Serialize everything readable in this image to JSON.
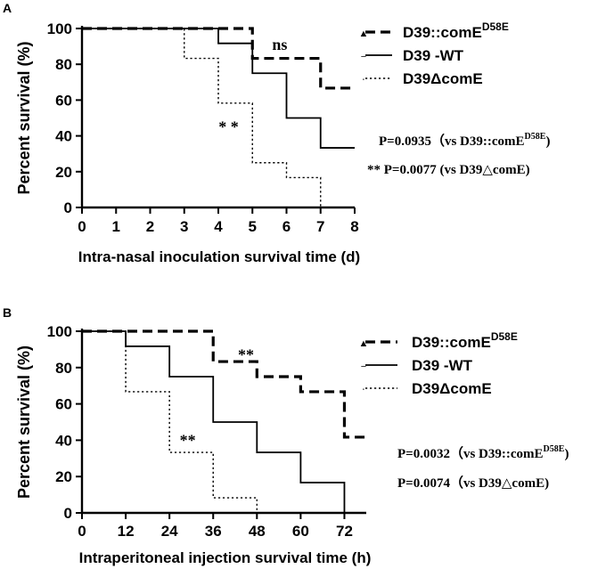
{
  "chart_data": [
    {
      "type": "line",
      "subtype": "kaplan-meier step",
      "panel_label": "A",
      "xlabel": "Intra-nasal inoculation survival time (d)",
      "ylabel": "Percent survival (%)",
      "xlim": [
        0,
        8
      ],
      "ylim": [
        0,
        100
      ],
      "x_ticks": [
        0,
        1,
        2,
        3,
        4,
        5,
        6,
        7,
        8
      ],
      "y_ticks": [
        0,
        20,
        40,
        60,
        80,
        100
      ],
      "grid": false,
      "legend_position": "top-right",
      "series": [
        {
          "name": "D39::comE",
          "name_sup": "D58E",
          "style": "dashed-bold",
          "marker": "▲",
          "x": [
            0,
            5,
            7,
            8
          ],
          "y": [
            100,
            83.3,
            66.7,
            66.7
          ]
        },
        {
          "name": "D39 -WT",
          "name_sup": "",
          "style": "solid",
          "marker": "−",
          "x": [
            0,
            4,
            5,
            6,
            7,
            8
          ],
          "y": [
            100,
            91.7,
            75,
            50,
            33.3,
            33.3
          ]
        },
        {
          "name": "D39ΔcomE",
          "name_sup": "",
          "style": "dotted",
          "marker": "⋅",
          "x": [
            0,
            3,
            4,
            5,
            6,
            7
          ],
          "y": [
            100,
            83.3,
            58.3,
            25,
            16.7,
            0
          ]
        }
      ],
      "annotations": [
        {
          "text": "ns",
          "x": 5.8,
          "y": 88,
          "font": "serif"
        },
        {
          "text": "* *",
          "x": 4.3,
          "y": 42,
          "font": "serif"
        }
      ],
      "stats": [
        {
          "text": "P=0.0935（vs D39::comE",
          "sup": "D58E",
          "close": ")"
        },
        {
          "text": "** P=0.0077 (vs D39△comE)",
          "sup": "",
          "close": ""
        }
      ]
    },
    {
      "type": "line",
      "subtype": "kaplan-meier step",
      "panel_label": "B",
      "xlabel": "Intraperitoneal injection survival time (h)",
      "ylabel": "Percent survival (%)",
      "xlim": [
        0,
        78
      ],
      "ylim": [
        0,
        100
      ],
      "x_ticks": [
        0,
        12,
        24,
        36,
        48,
        60,
        72
      ],
      "y_ticks": [
        0,
        20,
        40,
        60,
        80,
        100
      ],
      "grid": false,
      "legend_position": "top-right",
      "series": [
        {
          "name": "D39::comE",
          "name_sup": "D58E",
          "style": "dashed-bold",
          "marker": "▲",
          "x": [
            0,
            36,
            48,
            60,
            72,
            78
          ],
          "y": [
            100,
            83.3,
            75,
            66.7,
            41.7,
            41.7
          ]
        },
        {
          "name": "D39 -WT",
          "name_sup": "",
          "style": "solid",
          "marker": "−",
          "x": [
            0,
            12,
            24,
            36,
            48,
            60,
            72
          ],
          "y": [
            100,
            91.7,
            75,
            50,
            33.3,
            16.7,
            0
          ]
        },
        {
          "name": "D39ΔcomE",
          "name_sup": "",
          "style": "dotted",
          "marker": "⋅",
          "x": [
            0,
            12,
            24,
            36,
            48
          ],
          "y": [
            100,
            66.7,
            33.3,
            8.3,
            0
          ]
        }
      ],
      "annotations": [
        {
          "text": "**",
          "x": 45,
          "y": 84,
          "font": "serif"
        },
        {
          "text": "**",
          "x": 29,
          "y": 37,
          "font": "serif"
        }
      ],
      "stats": [
        {
          "text": "P=0.0032（vs D39::comE",
          "sup": "D58E",
          "close": ")"
        },
        {
          "text": "P=0.0074（vs D39△comE)",
          "sup": "",
          "close": ""
        }
      ]
    }
  ]
}
